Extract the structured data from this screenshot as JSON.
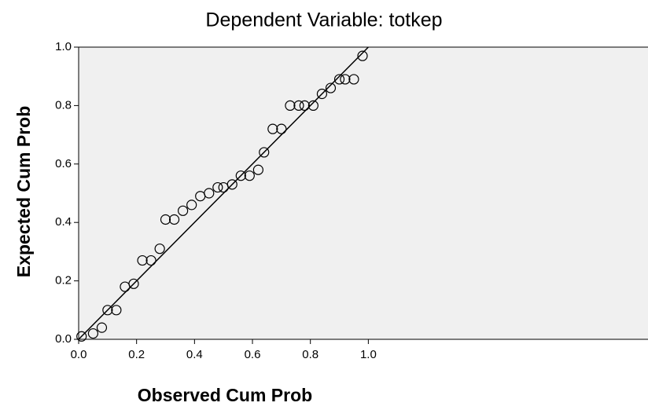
{
  "chart_data": {
    "type": "scatter",
    "title": "Dependent Variable: totkep",
    "xlabel": "Observed Cum Prob",
    "ylabel": "Expected Cum Prob",
    "x": [
      0.01,
      0.05,
      0.08,
      0.1,
      0.13,
      0.16,
      0.19,
      0.22,
      0.25,
      0.28,
      0.3,
      0.33,
      0.36,
      0.39,
      0.42,
      0.45,
      0.48,
      0.5,
      0.53,
      0.56,
      0.59,
      0.62,
      0.64,
      0.67,
      0.7,
      0.73,
      0.76,
      0.78,
      0.81,
      0.84,
      0.87,
      0.9,
      0.92,
      0.95,
      0.98
    ],
    "values": [
      0.01,
      0.02,
      0.04,
      0.1,
      0.1,
      0.18,
      0.19,
      0.27,
      0.27,
      0.31,
      0.41,
      0.41,
      0.44,
      0.46,
      0.49,
      0.5,
      0.52,
      0.52,
      0.53,
      0.56,
      0.56,
      0.58,
      0.64,
      0.72,
      0.72,
      0.8,
      0.8,
      0.8,
      0.8,
      0.84,
      0.86,
      0.89,
      0.89,
      0.89,
      0.97
    ],
    "color": "#000000",
    "reference_line": {
      "x": [
        0,
        1
      ],
      "y": [
        0,
        1
      ]
    },
    "xlim": [
      0,
      1.96
    ],
    "ylim": [
      0,
      1
    ],
    "xticks": [
      {
        "value": 0,
        "label": "0.0"
      },
      0.2,
      0.4,
      0.6,
      0.8,
      {
        "value": 1,
        "label": "1.0"
      }
    ],
    "yticks": [
      {
        "value": 0,
        "label": "0.0"
      },
      0.2,
      0.4,
      0.6,
      0.8,
      {
        "value": 1,
        "label": "1.0"
      }
    ]
  }
}
